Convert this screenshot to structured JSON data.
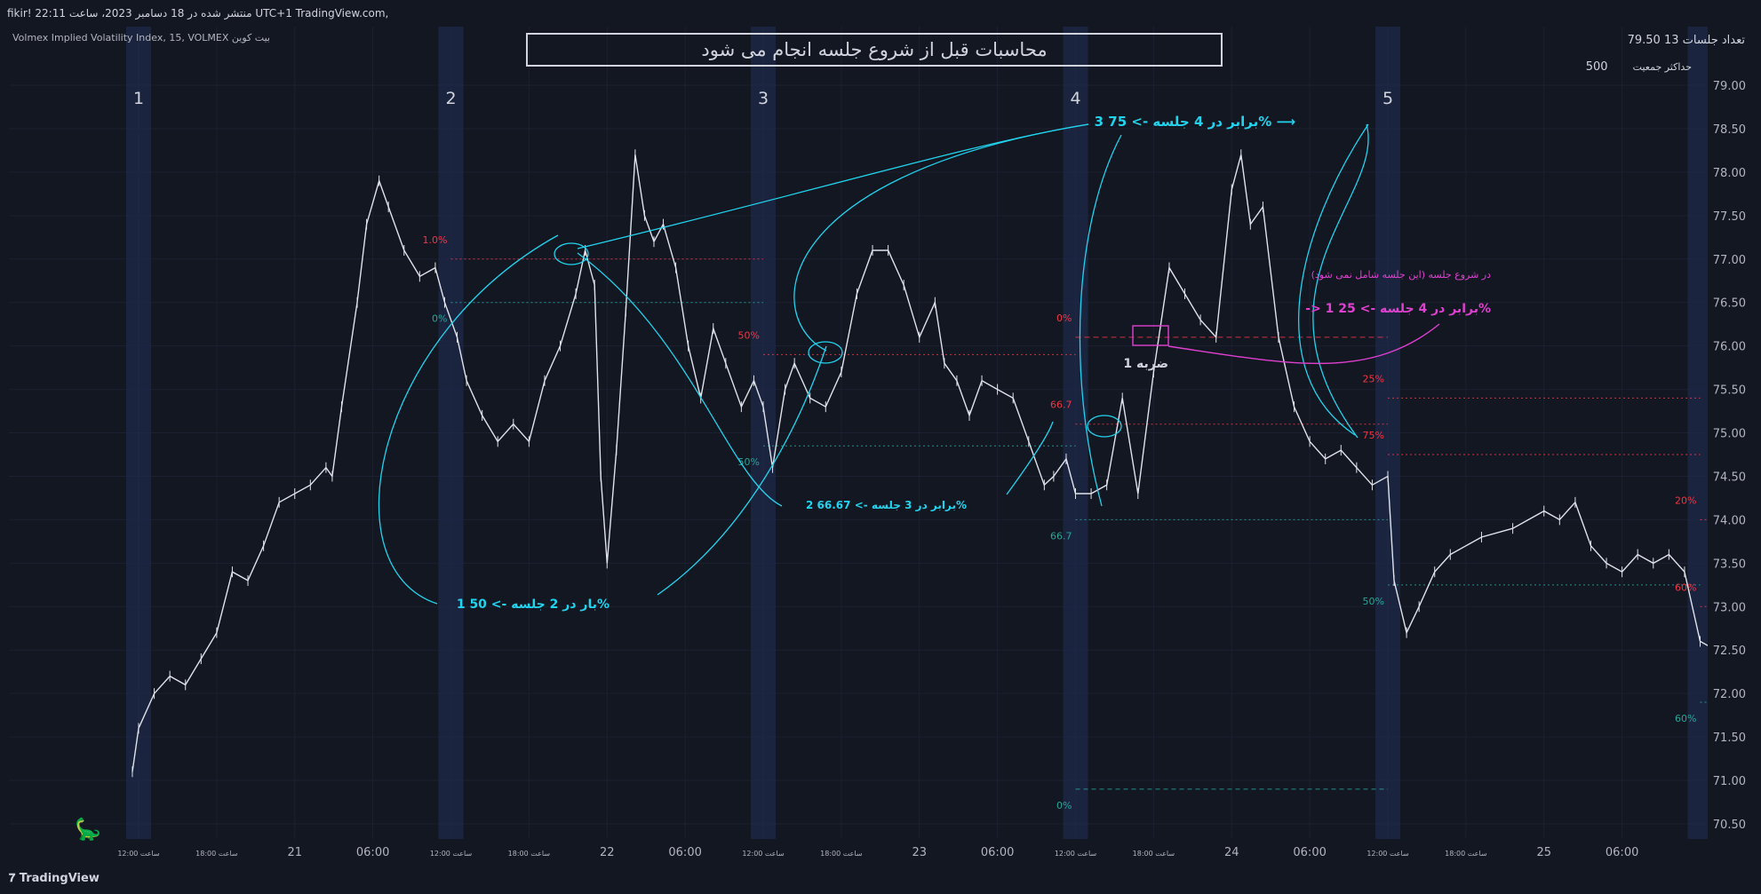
{
  "header": {
    "published": "fikir! منتشر شده در 18 دسامبر 2023، ساعت 22:11 UTC+1 TradingView.com,",
    "symbol_line": "Volmex Implied Volatility Index, 15, VOLMEX بیت کوین"
  },
  "info_panel": {
    "sessions_label": "تعداد جلسات 13 79.50",
    "max_pop_label": "حداکثر جمعیت",
    "max_pop_value": "500"
  },
  "title_box": "محاسبات قبل از شروع جلسه انجام می شود",
  "brand": "TradingView",
  "colors": {
    "bg": "#131722",
    "cyan": "#22d3ee",
    "magenta": "#e040d0",
    "red": "#f23645",
    "session": "#1e2a4a",
    "teal": "#26a69a",
    "blue": "#2962ff"
  },
  "chart_data": {
    "type": "line",
    "ylim": [
      70.3,
      79.3
    ],
    "yticks": [
      "79.00",
      "78.50",
      "78.00",
      "77.50",
      "77.00",
      "76.50",
      "76.00",
      "75.50",
      "75.00",
      "74.50",
      "74.00",
      "73.50",
      "73.00",
      "72.50",
      "72.00",
      "71.50",
      "71.00",
      "70.50"
    ],
    "ytick_values": [
      79,
      78.5,
      78,
      77.5,
      77,
      76.5,
      76,
      75.5,
      75,
      74.5,
      74,
      73.5,
      73,
      72.5,
      72,
      71.5,
      71,
      70.5
    ],
    "xticks": [
      {
        "label": "ساعت 12:00",
        "t": 0.0
      },
      {
        "label": "18:00 ساعت",
        "t": 0.25
      },
      {
        "label": "21",
        "t": 0.5
      },
      {
        "label": "06:00",
        "t": 0.75
      },
      {
        "label": "ساعت 12:00",
        "t": 1.0
      },
      {
        "label": "18:00 ساعت",
        "t": 1.25
      },
      {
        "label": "22",
        "t": 1.5
      },
      {
        "label": "06:00",
        "t": 1.75
      },
      {
        "label": "ساعت 12:00",
        "t": 2.0
      },
      {
        "label": "18:00 ساعت",
        "t": 2.25
      },
      {
        "label": "23",
        "t": 2.5
      },
      {
        "label": "06:00",
        "t": 2.75
      },
      {
        "label": "ساعت 12:00",
        "t": 3.0
      },
      {
        "label": "18:00 ساعت",
        "t": 3.25
      },
      {
        "label": "24",
        "t": 3.5
      },
      {
        "label": "06:00",
        "t": 3.75
      },
      {
        "label": "ساعت 12:00",
        "t": 4.0
      },
      {
        "label": "18:00 ساعت",
        "t": 4.25
      },
      {
        "label": "25",
        "t": 4.5
      },
      {
        "label": "06:00",
        "t": 4.75
      }
    ],
    "sessions": [
      {
        "label": "1",
        "t": 0.0
      },
      {
        "label": "2",
        "t": 1.0
      },
      {
        "label": "3",
        "t": 2.0
      },
      {
        "label": "4",
        "t": 3.0
      },
      {
        "label": "5",
        "t": 4.0
      },
      {
        "label": "",
        "t": 5.0
      }
    ],
    "series": [
      {
        "values": [
          [
            -0.02,
            71.1
          ],
          [
            0.0,
            71.6
          ],
          [
            0.05,
            72.0
          ],
          [
            0.1,
            72.2
          ],
          [
            0.15,
            72.1
          ],
          [
            0.2,
            72.4
          ],
          [
            0.25,
            72.7
          ],
          [
            0.3,
            73.4
          ],
          [
            0.35,
            73.3
          ],
          [
            0.4,
            73.7
          ],
          [
            0.45,
            74.2
          ],
          [
            0.5,
            74.3
          ],
          [
            0.55,
            74.4
          ],
          [
            0.6,
            74.6
          ],
          [
            0.62,
            74.5
          ],
          [
            0.65,
            75.3
          ],
          [
            0.7,
            76.5
          ],
          [
            0.73,
            77.4
          ],
          [
            0.77,
            77.9
          ],
          [
            0.8,
            77.6
          ],
          [
            0.85,
            77.1
          ],
          [
            0.9,
            76.8
          ],
          [
            0.95,
            76.9
          ],
          [
            0.98,
            76.5
          ],
          [
            1.02,
            76.1
          ],
          [
            1.05,
            75.6
          ],
          [
            1.1,
            75.2
          ],
          [
            1.15,
            74.9
          ],
          [
            1.2,
            75.1
          ],
          [
            1.25,
            74.9
          ],
          [
            1.3,
            75.6
          ],
          [
            1.35,
            76.0
          ],
          [
            1.4,
            76.6
          ],
          [
            1.43,
            77.1
          ],
          [
            1.46,
            76.7
          ],
          [
            1.48,
            74.5
          ],
          [
            1.5,
            73.5
          ],
          [
            1.53,
            74.8
          ],
          [
            1.56,
            76.4
          ],
          [
            1.59,
            78.2
          ],
          [
            1.62,
            77.5
          ],
          [
            1.65,
            77.2
          ],
          [
            1.68,
            77.4
          ],
          [
            1.72,
            76.9
          ],
          [
            1.76,
            76.0
          ],
          [
            1.8,
            75.4
          ],
          [
            1.84,
            76.2
          ],
          [
            1.88,
            75.8
          ],
          [
            1.93,
            75.3
          ],
          [
            1.97,
            75.6
          ],
          [
            2.0,
            75.3
          ],
          [
            2.03,
            74.6
          ],
          [
            2.07,
            75.5
          ],
          [
            2.1,
            75.8
          ],
          [
            2.15,
            75.4
          ],
          [
            2.2,
            75.3
          ],
          [
            2.25,
            75.7
          ],
          [
            2.3,
            76.6
          ],
          [
            2.35,
            77.1
          ],
          [
            2.4,
            77.1
          ],
          [
            2.45,
            76.7
          ],
          [
            2.5,
            76.1
          ],
          [
            2.55,
            76.5
          ],
          [
            2.58,
            75.8
          ],
          [
            2.62,
            75.6
          ],
          [
            2.66,
            75.2
          ],
          [
            2.7,
            75.6
          ],
          [
            2.75,
            75.5
          ],
          [
            2.8,
            75.4
          ],
          [
            2.85,
            74.9
          ],
          [
            2.9,
            74.4
          ],
          [
            2.93,
            74.5
          ],
          [
            2.97,
            74.7
          ],
          [
            3.0,
            74.3
          ],
          [
            3.05,
            74.3
          ],
          [
            3.1,
            74.4
          ],
          [
            3.15,
            75.4
          ],
          [
            3.2,
            74.3
          ],
          [
            3.25,
            75.7
          ],
          [
            3.3,
            76.9
          ],
          [
            3.35,
            76.6
          ],
          [
            3.4,
            76.3
          ],
          [
            3.45,
            76.1
          ],
          [
            3.5,
            77.8
          ],
          [
            3.53,
            78.2
          ],
          [
            3.56,
            77.4
          ],
          [
            3.6,
            77.6
          ],
          [
            3.65,
            76.1
          ],
          [
            3.7,
            75.3
          ],
          [
            3.75,
            74.9
          ],
          [
            3.8,
            74.7
          ],
          [
            3.85,
            74.8
          ],
          [
            3.9,
            74.6
          ],
          [
            3.95,
            74.4
          ],
          [
            4.0,
            74.5
          ],
          [
            4.02,
            73.3
          ],
          [
            4.06,
            72.7
          ],
          [
            4.1,
            73.0
          ],
          [
            4.15,
            73.4
          ],
          [
            4.2,
            73.6
          ],
          [
            4.3,
            73.8
          ],
          [
            4.4,
            73.9
          ],
          [
            4.5,
            74.1
          ],
          [
            4.55,
            74.0
          ],
          [
            4.6,
            74.2
          ],
          [
            4.65,
            73.7
          ],
          [
            4.7,
            73.5
          ],
          [
            4.75,
            73.4
          ],
          [
            4.8,
            73.6
          ],
          [
            4.85,
            73.5
          ],
          [
            4.9,
            73.6
          ],
          [
            4.95,
            73.4
          ],
          [
            5.0,
            72.6
          ],
          [
            5.05,
            72.5
          ]
        ]
      }
    ],
    "levels": [
      {
        "t0": 1.0,
        "t1": 2.0,
        "y": 77.0,
        "color": "#f23645",
        "label": "1.0%",
        "dash": "2,3"
      },
      {
        "t0": 1.0,
        "t1": 2.0,
        "y": 76.5,
        "color": "#26a69a",
        "label": "0%",
        "dash": "2,3"
      },
      {
        "t0": 2.0,
        "t1": 3.0,
        "y": 75.9,
        "color": "#f23645",
        "label": "50%",
        "dash": "2,3"
      },
      {
        "t0": 2.0,
        "t1": 3.0,
        "y": 74.85,
        "color": "#26a69a",
        "label": "50%",
        "dash": "2,3"
      },
      {
        "t0": 3.0,
        "t1": 4.0,
        "y": 76.1,
        "color": "#f23645",
        "label": "0%",
        "dash": "6,4"
      },
      {
        "t0": 3.0,
        "t1": 4.0,
        "y": 75.1,
        "color": "#f23645",
        "label": "66.7",
        "dash": "2,3"
      },
      {
        "t0": 3.0,
        "t1": 4.0,
        "y": 74.0,
        "color": "#26a69a",
        "label": "66.7",
        "dash": "2,3"
      },
      {
        "t0": 3.0,
        "t1": 4.0,
        "y": 70.9,
        "color": "#26a69a",
        "label": "0%",
        "dash": "5,4"
      },
      {
        "t0": 4.0,
        "t1": 5.0,
        "y": 75.4,
        "color": "#f23645",
        "label": "25%",
        "dash": "2,3"
      },
      {
        "t0": 4.0,
        "t1": 5.0,
        "y": 74.75,
        "color": "#f23645",
        "label": "75%",
        "dash": "2,3"
      },
      {
        "t0": 4.0,
        "t1": 5.0,
        "y": 73.25,
        "color": "#26a69a",
        "label": "50%",
        "dash": "2,3"
      },
      {
        "t0": 5.0,
        "t1": 5.1,
        "y": 74.0,
        "color": "#f23645",
        "label": "20%",
        "dash": "2,3"
      },
      {
        "t0": 5.0,
        "t1": 5.1,
        "y": 73.0,
        "color": "#f23645",
        "label": "60%",
        "dash": "2,3"
      },
      {
        "t0": 5.0,
        "t1": 5.1,
        "y": 71.9,
        "color": "#26a69a",
        "label": "60%",
        "dash": "2,3"
      }
    ],
    "annotations": {
      "a1": "1 بار در 2 جلسه -> 50%",
      "a2": "2 برابر در 3 جلسه -> 66.67%",
      "a3": "3 برابر در 4 جلسه -> 75% ⟶",
      "a4": "در شروع جلسه (این جلسه شامل نمی شود)",
      "a5": "-> 1 برابر در 4 جلسه -> 25%",
      "a6": "1 ضربه"
    }
  }
}
